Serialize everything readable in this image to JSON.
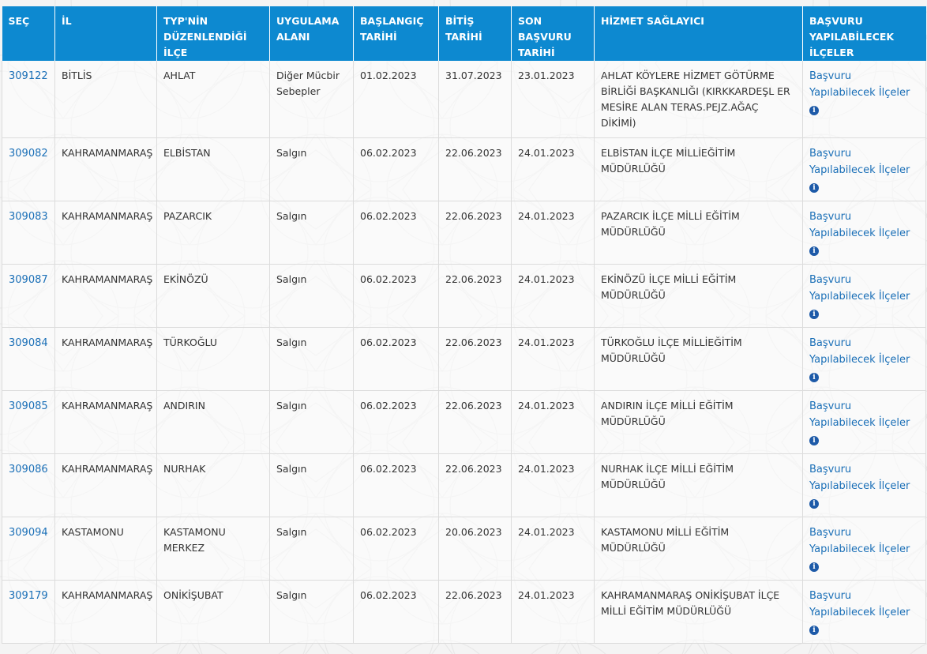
{
  "colors": {
    "header_bg": "#0d89d0",
    "header_text": "#ffffff",
    "link": "#1a6fb7",
    "info_icon": "#1d5aa8"
  },
  "table": {
    "headers": [
      {
        "l1": "SEÇ"
      },
      {
        "l1": "İL"
      },
      {
        "l1": "TYP'NİN",
        "l2": "DÜZENLENDİĞİ",
        "l3": "İLÇE"
      },
      {
        "l1": "UYGULAMA",
        "l2": "ALANI"
      },
      {
        "l1": "BAŞLANGIÇ",
        "l2": "TARİHİ"
      },
      {
        "l1": "BİTİŞ",
        "l2": "TARİHİ"
      },
      {
        "l1": "SON",
        "l2": "BAŞVURU",
        "l3": "TARİHİ"
      },
      {
        "l1": "HİZMET SAĞLAYICI"
      },
      {
        "l1": "BAŞVURU",
        "l2": "YAPILABİLECEK",
        "l3": "İLÇELER"
      }
    ],
    "apply_link_line1": "Başvuru",
    "apply_link_line2": "Yapılabilecek İlçeler",
    "info_icon": "info-circle-icon",
    "rows": [
      {
        "id": "309122",
        "il": "BİTLİS",
        "ilce": "AHLAT",
        "alan_l1": "Diğer Mücbir",
        "alan_l2": "Sebepler",
        "baslangic": "01.02.2023",
        "bitis": "31.07.2023",
        "son": "23.01.2023",
        "saglayici_l1": "AHLAT KÖYLERE HİZMET GÖTÜRME",
        "saglayici_l2": "BİRLİĞİ BAŞKANLIĞI (KIRKKARDEŞL ER",
        "saglayici_l3": "MESİRE ALAN TERAS.PEJZ.AĞAÇ",
        "saglayici_l4": "DİKİMİ)"
      },
      {
        "id": "309082",
        "il": "KAHRAMANMARAŞ",
        "ilce": "ELBİSTAN",
        "alan_l1": "Salgın",
        "baslangic": "06.02.2023",
        "bitis": "22.06.2023",
        "son": "24.01.2023",
        "saglayici_l1": "ELBİSTAN İLÇE MİLLİEĞİTİM",
        "saglayici_l2": "MÜDÜRLÜĞÜ"
      },
      {
        "id": "309083",
        "il": "KAHRAMANMARAŞ",
        "ilce": "PAZARCIK",
        "alan_l1": "Salgın",
        "baslangic": "06.02.2023",
        "bitis": "22.06.2023",
        "son": "24.01.2023",
        "saglayici_l1": "PAZARCIK İLÇE MİLLİ EĞİTİM",
        "saglayici_l2": "MÜDÜRLÜĞÜ"
      },
      {
        "id": "309087",
        "il": "KAHRAMANMARAŞ",
        "ilce": "EKİNÖZÜ",
        "alan_l1": "Salgın",
        "baslangic": "06.02.2023",
        "bitis": "22.06.2023",
        "son": "24.01.2023",
        "saglayici_l1": "EKİNÖZÜ İLÇE MİLLİ EĞİTİM",
        "saglayici_l2": "MÜDÜRLÜĞÜ"
      },
      {
        "id": "309084",
        "il": "KAHRAMANMARAŞ",
        "ilce": "TÜRKOĞLU",
        "alan_l1": "Salgın",
        "baslangic": "06.02.2023",
        "bitis": "22.06.2023",
        "son": "24.01.2023",
        "saglayici_l1": "TÜRKOĞLU İLÇE MİLLİEĞİTİM",
        "saglayici_l2": "MÜDÜRLÜĞÜ"
      },
      {
        "id": "309085",
        "il": "KAHRAMANMARAŞ",
        "ilce": "ANDIRIN",
        "alan_l1": "Salgın",
        "baslangic": "06.02.2023",
        "bitis": "22.06.2023",
        "son": "24.01.2023",
        "saglayici_l1": "ANDIRIN İLÇE MİLLİ EĞİTİM",
        "saglayici_l2": "MÜDÜRLÜĞÜ"
      },
      {
        "id": "309086",
        "il": "KAHRAMANMARAŞ",
        "ilce": "NURHAK",
        "alan_l1": "Salgın",
        "baslangic": "06.02.2023",
        "bitis": "22.06.2023",
        "son": "24.01.2023",
        "saglayici_l1": "NURHAK İLÇE MİLLİ EĞİTİM",
        "saglayici_l2": "MÜDÜRLÜĞÜ"
      },
      {
        "id": "309094",
        "il": "KASTAMONU",
        "ilce": "KASTAMONU",
        "ilce_l2": "MERKEZ",
        "alan_l1": "Salgın",
        "baslangic": "06.02.2023",
        "bitis": "20.06.2023",
        "son": "24.01.2023",
        "saglayici_l1": "KASTAMONU MİLLİ EĞİTİM MÜDÜRLÜĞÜ"
      },
      {
        "id": "309179",
        "il": "KAHRAMANMARAŞ",
        "ilce": "ONİKİŞUBAT",
        "alan_l1": "Salgın",
        "baslangic": "06.02.2023",
        "bitis": "22.06.2023",
        "son": "24.01.2023",
        "saglayici_l1": "KAHRAMANMARAŞ ONİKİŞUBAT İLÇE",
        "saglayici_l2": "MİLLİ EĞİTİM MÜDÜRLÜĞÜ"
      }
    ]
  }
}
